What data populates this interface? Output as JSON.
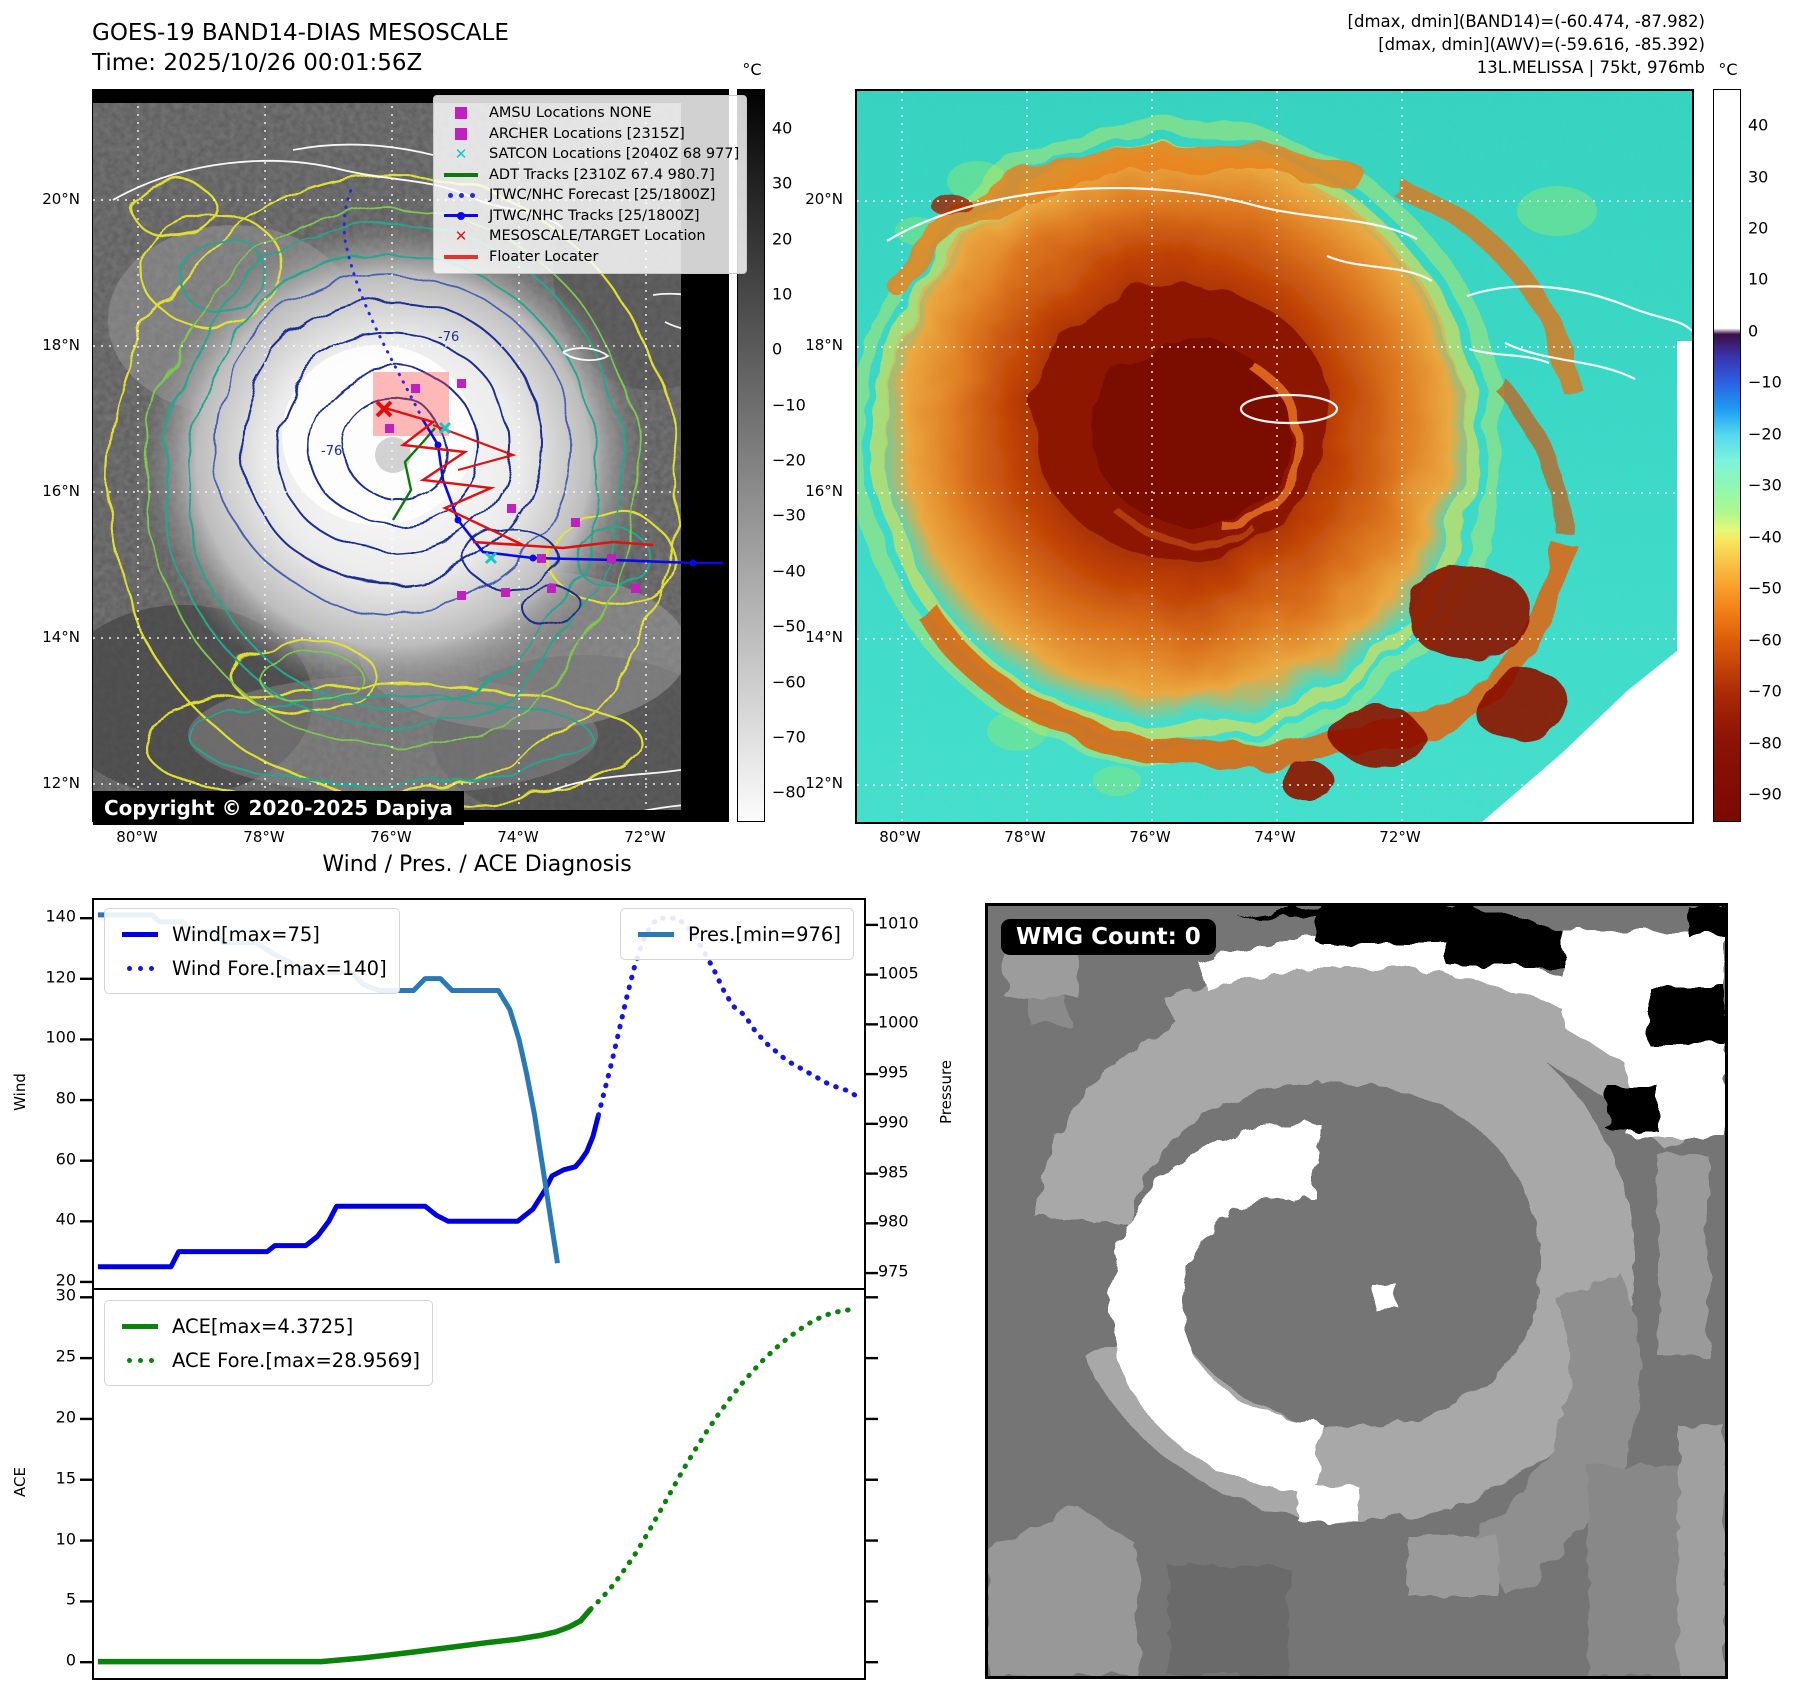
{
  "header": {
    "title": "GOES-19 BAND14-DIAS MESOSCALE",
    "time": "Time: 2025/10/26 00:01:56Z",
    "info": [
      "[dmax, dmin](BAND14)=(-60.474, -87.982)",
      "[dmax, dmin](AWV)=(-59.616, -85.392)",
      "13L.MELISSA | 75kt, 976mb"
    ]
  },
  "maps": {
    "xtick_labels": [
      "80°W",
      "78°W",
      "76°W",
      "74°W",
      "72°W"
    ],
    "ytick_labels": [
      "20°N",
      "18°N",
      "16°N",
      "14°N",
      "12°N"
    ],
    "copyright": "Copyright © 2020-2025 Dapiya",
    "contour_labels": [
      "-76",
      "-76"
    ],
    "left_legend": [
      {
        "marker": "square",
        "color": "#c020c0",
        "label": "AMSU Locations NONE"
      },
      {
        "marker": "square",
        "color": "#c020c0",
        "label": "ARCHER Locations [2315Z]"
      },
      {
        "marker": "x",
        "color": "#10c8c8",
        "label": "SATCON Locations [2040Z 68 977]"
      },
      {
        "marker": "line",
        "color": "#0a7a0a",
        "label": "ADT Tracks [2310Z 67.4 980.7]"
      },
      {
        "marker": "dotted",
        "color": "#2626e8",
        "label": "JTWC/NHC Forecast [25/1800Z]"
      },
      {
        "marker": "linedot",
        "color": "#0a0ae8",
        "label": "JTWC/NHC Tracks [25/1800Z]"
      },
      {
        "marker": "x",
        "color": "#e81414",
        "label": "MESOSCALE/TARGET Location"
      },
      {
        "marker": "line",
        "color": "#e83030",
        "label": "Floater Locater"
      }
    ],
    "colorbar_left": {
      "unit": "°C",
      "vmax": 47,
      "vmin": -85,
      "ticks": [
        40,
        30,
        20,
        10,
        0,
        -10,
        -20,
        -30,
        -40,
        -50,
        -60,
        -70,
        -80
      ]
    },
    "colorbar_right": {
      "unit": "°C",
      "vmax": 47,
      "vmin": -95,
      "ticks": [
        40,
        30,
        20,
        10,
        0,
        -10,
        -20,
        -30,
        -40,
        -50,
        -60,
        -70,
        -80,
        -90
      ]
    }
  },
  "wmg": {
    "badge": "WMG Count: 0"
  },
  "chart_data": [
    {
      "type": "line",
      "title": "Wind / Pres. / ACE Diagnosis",
      "ylabel": "Wind",
      "y2label": "Pressure",
      "xlim": [
        0,
        1
      ],
      "ylim": [
        18,
        146
      ],
      "y2lim": [
        973.5,
        1012.5
      ],
      "yticks": [
        140,
        120,
        100,
        80,
        60,
        40,
        20
      ],
      "y2ticks": [
        1010,
        1005,
        1000,
        995,
        990,
        985,
        980,
        975
      ],
      "grid": false,
      "legend_position": "upper left / upper right",
      "series": [
        {
          "name": "Wind[max=75]",
          "axis": "left",
          "style": "solid",
          "color": "#0000e0",
          "width": 5,
          "points": [
            [
              0.005,
              25
            ],
            [
              0.1,
              25
            ],
            [
              0.11,
              30
            ],
            [
              0.225,
              30
            ],
            [
              0.235,
              32
            ],
            [
              0.275,
              32
            ],
            [
              0.29,
              35
            ],
            [
              0.305,
              40
            ],
            [
              0.315,
              45
            ],
            [
              0.43,
              45
            ],
            [
              0.445,
              42
            ],
            [
              0.46,
              40
            ],
            [
              0.55,
              40
            ],
            [
              0.57,
              44
            ],
            [
              0.585,
              50
            ],
            [
              0.595,
              55
            ],
            [
              0.61,
              57
            ],
            [
              0.625,
              58
            ],
            [
              0.632,
              60
            ],
            [
              0.64,
              63
            ],
            [
              0.648,
              68
            ],
            [
              0.655,
              75
            ]
          ]
        },
        {
          "name": "Wind Fore.[max=140]",
          "axis": "left",
          "style": "dotted",
          "color": "#1414e8",
          "width": 5,
          "points": [
            [
              0.655,
              75
            ],
            [
              0.662,
              82
            ],
            [
              0.672,
              92
            ],
            [
              0.682,
              103
            ],
            [
              0.692,
              114
            ],
            [
              0.702,
              124
            ],
            [
              0.712,
              132
            ],
            [
              0.722,
              137
            ],
            [
              0.732,
              140
            ],
            [
              0.758,
              140
            ],
            [
              0.775,
              136
            ],
            [
              0.79,
              130
            ],
            [
              0.805,
              123
            ],
            [
              0.818,
              116
            ],
            [
              0.83,
              111
            ],
            [
              0.845,
              108
            ],
            [
              0.858,
              103
            ],
            [
              0.872,
              99
            ],
            [
              0.886,
              96
            ],
            [
              0.9,
              93
            ],
            [
              0.914,
              91
            ],
            [
              0.928,
              89
            ],
            [
              0.942,
              87
            ],
            [
              0.956,
              85
            ],
            [
              0.968,
              84
            ],
            [
              0.98,
              83
            ],
            [
              0.992,
              81
            ]
          ]
        },
        {
          "name": "Pres.[min=976]",
          "axis": "right",
          "style": "solid",
          "color": "#2879b5",
          "width": 5,
          "points": [
            [
              0.005,
              1011
            ],
            [
              0.075,
              1011
            ],
            [
              0.085,
              1010.3
            ],
            [
              0.115,
              1010.3
            ],
            [
              0.125,
              1009.3
            ],
            [
              0.155,
              1009.3
            ],
            [
              0.168,
              1008.2
            ],
            [
              0.21,
              1008.2
            ],
            [
              0.235,
              1007
            ],
            [
              0.26,
              1006
            ],
            [
              0.285,
              1005.2
            ],
            [
              0.335,
              1005.2
            ],
            [
              0.35,
              1004
            ],
            [
              0.37,
              1003.4
            ],
            [
              0.415,
              1003.4
            ],
            [
              0.43,
              1004.6
            ],
            [
              0.45,
              1004.6
            ],
            [
              0.465,
              1003.4
            ],
            [
              0.525,
              1003.4
            ],
            [
              0.54,
              1001.5
            ],
            [
              0.552,
              998.5
            ],
            [
              0.562,
              995
            ],
            [
              0.572,
              991
            ],
            [
              0.58,
              987
            ],
            [
              0.588,
              983
            ],
            [
              0.595,
              979.5
            ],
            [
              0.602,
              976
            ]
          ]
        }
      ]
    },
    {
      "type": "line",
      "title": "",
      "ylabel": "ACE",
      "xlim": [
        0,
        1
      ],
      "ylim": [
        -1.3,
        30.6
      ],
      "yticks": [
        30,
        25,
        20,
        15,
        10,
        5,
        0
      ],
      "grid": false,
      "series": [
        {
          "name": "ACE[max=4.3725]",
          "axis": "left",
          "style": "solid",
          "color": "#0a830a",
          "width": 5.5,
          "points": [
            [
              0.005,
              0.05
            ],
            [
              0.295,
              0.05
            ],
            [
              0.35,
              0.35
            ],
            [
              0.41,
              0.8
            ],
            [
              0.46,
              1.2
            ],
            [
              0.51,
              1.6
            ],
            [
              0.55,
              1.9
            ],
            [
              0.58,
              2.2
            ],
            [
              0.6,
              2.5
            ],
            [
              0.617,
              2.9
            ],
            [
              0.632,
              3.4
            ],
            [
              0.645,
              4.37
            ]
          ]
        },
        {
          "name": "ACE Fore.[max=28.9569]",
          "axis": "left",
          "style": "dotted",
          "color": "#0a830a",
          "width": 5,
          "points": [
            [
              0.645,
              4.37
            ],
            [
              0.66,
              5.3
            ],
            [
              0.675,
              6.4
            ],
            [
              0.69,
              7.7
            ],
            [
              0.705,
              9.1
            ],
            [
              0.72,
              10.7
            ],
            [
              0.735,
              12.4
            ],
            [
              0.75,
              14.1
            ],
            [
              0.765,
              15.8
            ],
            [
              0.78,
              17.4
            ],
            [
              0.795,
              18.9
            ],
            [
              0.81,
              20.3
            ],
            [
              0.825,
              21.6
            ],
            [
              0.84,
              22.8
            ],
            [
              0.855,
              23.9
            ],
            [
              0.87,
              24.9
            ],
            [
              0.885,
              25.8
            ],
            [
              0.9,
              26.6
            ],
            [
              0.915,
              27.3
            ],
            [
              0.93,
              27.9
            ],
            [
              0.945,
              28.4
            ],
            [
              0.958,
              28.7
            ],
            [
              0.972,
              28.9
            ],
            [
              0.985,
              29.0
            ]
          ]
        }
      ]
    }
  ]
}
